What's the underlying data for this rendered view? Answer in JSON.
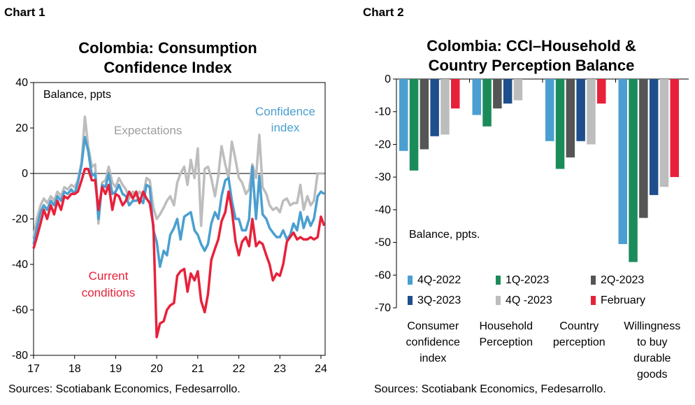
{
  "chart1": {
    "label": "Chart 1",
    "title_line1": "Colombia: Consumption",
    "title_line2": "Confidence Index",
    "source": "Sources: Scotiabank Economics, Fedesarrollo."
  },
  "chart2": {
    "label": "Chart 2",
    "title_line1": "Colombia: CCI–Household &",
    "title_line2": "Country Perception Balance",
    "source": "Sources: Scotiabank Economics, Fedesarrollo."
  },
  "chart_data": [
    {
      "type": "line",
      "title": "Colombia: Consumption Confidence Index",
      "ylabel": "Balance, ppts",
      "ylim": [
        -80,
        40
      ],
      "yticks": [
        40,
        20,
        0,
        -20,
        -40,
        -60,
        -80
      ],
      "xlim": [
        17,
        24.1
      ],
      "xticks": [
        "17",
        "18",
        "19",
        "20",
        "21",
        "22",
        "23",
        "24"
      ],
      "series": [
        {
          "name": "Expectations",
          "color": "#bdbdbd",
          "x": [
            17.0,
            17.08,
            17.17,
            17.25,
            17.33,
            17.42,
            17.5,
            17.58,
            17.67,
            17.75,
            17.83,
            17.92,
            18.0,
            18.08,
            18.17,
            18.25,
            18.33,
            18.42,
            18.5,
            18.58,
            18.67,
            18.75,
            18.83,
            18.92,
            19.0,
            19.08,
            19.17,
            19.25,
            19.33,
            19.42,
            19.5,
            19.58,
            19.67,
            19.75,
            19.83,
            19.92,
            20.0,
            20.08,
            20.17,
            20.25,
            20.33,
            20.42,
            20.5,
            20.58,
            20.67,
            20.75,
            20.83,
            20.92,
            21.0,
            21.08,
            21.17,
            21.25,
            21.33,
            21.42,
            21.5,
            21.58,
            21.67,
            21.75,
            21.83,
            21.92,
            22.0,
            22.08,
            22.17,
            22.25,
            22.33,
            22.42,
            22.5,
            22.58,
            22.67,
            22.75,
            22.83,
            22.92,
            23.0,
            23.08,
            23.17,
            23.25,
            23.33,
            23.42,
            23.5,
            23.58,
            23.67,
            23.75,
            23.83,
            23.92,
            24.0,
            24.08
          ],
          "values": [
            -28,
            -20,
            -14,
            -11,
            -13,
            -10,
            -12,
            -8,
            -10,
            -6,
            -7,
            -5,
            -6,
            -3,
            5,
            25,
            12,
            3,
            4,
            -22,
            -4,
            -3,
            3,
            -4,
            -6,
            -2,
            -5,
            -7,
            -11,
            -8,
            -10,
            -8,
            -10,
            -2,
            -3,
            -15,
            -20,
            -18,
            -15,
            -12,
            -10,
            -14,
            -4,
            0,
            3,
            -5,
            6,
            -2,
            11,
            -23,
            2,
            3,
            -2,
            -10,
            -1,
            12,
            4,
            -2,
            14,
            6,
            -2,
            -4,
            -9,
            -7,
            4,
            -2,
            17,
            -6,
            -9,
            -14,
            -16,
            -15,
            -17,
            -12,
            -11,
            -14,
            -13,
            -13,
            -5,
            -16,
            -10,
            -14,
            -12,
            0,
            0,
            0
          ]
        },
        {
          "name": "Confidence index",
          "color": "#4a9fd0",
          "x": [
            17.0,
            17.08,
            17.17,
            17.25,
            17.33,
            17.42,
            17.5,
            17.58,
            17.67,
            17.75,
            17.83,
            17.92,
            18.0,
            18.08,
            18.17,
            18.25,
            18.33,
            18.42,
            18.5,
            18.58,
            18.67,
            18.75,
            18.83,
            18.92,
            19.0,
            19.08,
            19.17,
            19.25,
            19.33,
            19.42,
            19.5,
            19.58,
            19.67,
            19.75,
            19.83,
            19.92,
            20.0,
            20.08,
            20.17,
            20.25,
            20.33,
            20.42,
            20.5,
            20.58,
            20.67,
            20.75,
            20.83,
            20.92,
            21.0,
            21.08,
            21.17,
            21.25,
            21.33,
            21.42,
            21.5,
            21.58,
            21.67,
            21.75,
            21.83,
            21.92,
            22.0,
            22.08,
            22.17,
            22.25,
            22.33,
            22.42,
            22.5,
            22.58,
            22.67,
            22.75,
            22.83,
            22.92,
            23.0,
            23.08,
            23.17,
            23.25,
            23.33,
            23.42,
            23.5,
            23.58,
            23.67,
            23.75,
            23.83,
            23.92,
            24.0,
            24.08
          ],
          "values": [
            -31,
            -24,
            -17,
            -14,
            -16,
            -12,
            -14,
            -10,
            -12,
            -8,
            -9,
            -7,
            -9,
            -4,
            4,
            16,
            10,
            -1,
            0,
            -20,
            -5,
            -6,
            0,
            -9,
            -8,
            -5,
            -9,
            -10,
            -14,
            -12,
            -12,
            -11,
            -13,
            -5,
            -6,
            -25,
            -30,
            -41,
            -34,
            -36,
            -27,
            -24,
            -20,
            -29,
            -19,
            -18,
            -17,
            -25,
            -27,
            -31,
            -34,
            -31,
            -22,
            -17,
            -20,
            -10,
            -3,
            -2,
            -12,
            -20,
            -20,
            -25,
            -25,
            -20,
            3,
            -20,
            -1,
            -18,
            -20,
            -24,
            -26,
            -28,
            -28,
            -25,
            -29,
            -27,
            -22,
            -25,
            -17,
            -24,
            -19,
            -23,
            -20,
            -10,
            -8,
            -9
          ]
        },
        {
          "name": "Current conditions",
          "color": "#e8213a",
          "x": [
            17.0,
            17.08,
            17.17,
            17.25,
            17.33,
            17.42,
            17.5,
            17.58,
            17.67,
            17.75,
            17.83,
            17.92,
            18.0,
            18.08,
            18.17,
            18.25,
            18.33,
            18.42,
            18.5,
            18.58,
            18.67,
            18.75,
            18.83,
            18.92,
            19.0,
            19.08,
            19.17,
            19.25,
            19.33,
            19.42,
            19.5,
            19.58,
            19.67,
            19.75,
            19.83,
            19.92,
            20.0,
            20.08,
            20.17,
            20.25,
            20.33,
            20.42,
            20.5,
            20.58,
            20.67,
            20.75,
            20.83,
            20.92,
            21.0,
            21.08,
            21.17,
            21.25,
            21.33,
            21.42,
            21.5,
            21.58,
            21.67,
            21.75,
            21.83,
            21.92,
            22.0,
            22.08,
            22.17,
            22.25,
            22.33,
            22.42,
            22.5,
            22.58,
            22.67,
            22.75,
            22.83,
            22.92,
            23.0,
            23.08,
            23.17,
            23.25,
            23.33,
            23.42,
            23.5,
            23.58,
            23.67,
            23.75,
            23.83,
            23.92,
            24.0,
            24.08
          ],
          "values": [
            -33,
            -28,
            -22,
            -16,
            -20,
            -14,
            -18,
            -12,
            -16,
            -10,
            -11,
            -9,
            -9,
            -8,
            -3,
            2,
            2,
            -3,
            -3,
            -16,
            -6,
            -9,
            -5,
            -16,
            -9,
            -10,
            -14,
            -12,
            -8,
            -11,
            -8,
            -13,
            -8,
            -11,
            -13,
            -23,
            -72,
            -66,
            -65,
            -60,
            -58,
            -57,
            -45,
            -43,
            -42,
            -52,
            -44,
            -47,
            -43,
            -56,
            -61,
            -53,
            -38,
            -33,
            -29,
            -21,
            -17,
            -8,
            -16,
            -30,
            -36,
            -30,
            -28,
            -32,
            -20,
            -32,
            -30,
            -31,
            -36,
            -40,
            -47,
            -44,
            -45,
            -40,
            -30,
            -28,
            -26,
            -29,
            -28,
            -29,
            -29,
            -28,
            -29,
            -28,
            -19,
            -23
          ]
        }
      ],
      "annotations": [
        "Expectations",
        "Confidence index",
        "Current conditions"
      ]
    },
    {
      "type": "bar",
      "title": "Colombia: CCI–Household & Country Perception Balance",
      "ylabel": "Balance, ppts.",
      "ylim": [
        -70,
        0
      ],
      "yticks": [
        0,
        -10,
        -20,
        -30,
        -40,
        -50,
        -60,
        -70
      ],
      "categories": [
        "Consumer confidence index",
        "Household Perception",
        "Country perception",
        "Willingness to buy durable goods"
      ],
      "category_lines": [
        [
          "Consumer",
          "confidence",
          "index"
        ],
        [
          "Household",
          "Perception"
        ],
        [
          "Country",
          "perception"
        ],
        [
          "Willingness",
          "to buy",
          "durable",
          "goods"
        ]
      ],
      "legend_placement": "bottom-left",
      "series": [
        {
          "name": "4Q-2022",
          "color": "#4a9fd0",
          "values": [
            -22,
            -11,
            -19,
            -50.5
          ]
        },
        {
          "name": "1Q-2023",
          "color": "#1a8c5a",
          "values": [
            -28,
            -14.5,
            -27.5,
            -56
          ]
        },
        {
          "name": "2Q-2023",
          "color": "#555555",
          "values": [
            -21.5,
            -9,
            -24,
            -42.5
          ]
        },
        {
          "name": "3Q-2023",
          "color": "#1f4e8c",
          "values": [
            -17.5,
            -7.5,
            -19,
            -35.5
          ]
        },
        {
          "name": "4Q -2023",
          "color": "#bdbdbd",
          "values": [
            -17,
            -6.5,
            -20,
            -33
          ]
        },
        {
          "name": "February",
          "color": "#e8213a",
          "values": [
            -9,
            0,
            -7.5,
            -30
          ]
        }
      ]
    }
  ]
}
